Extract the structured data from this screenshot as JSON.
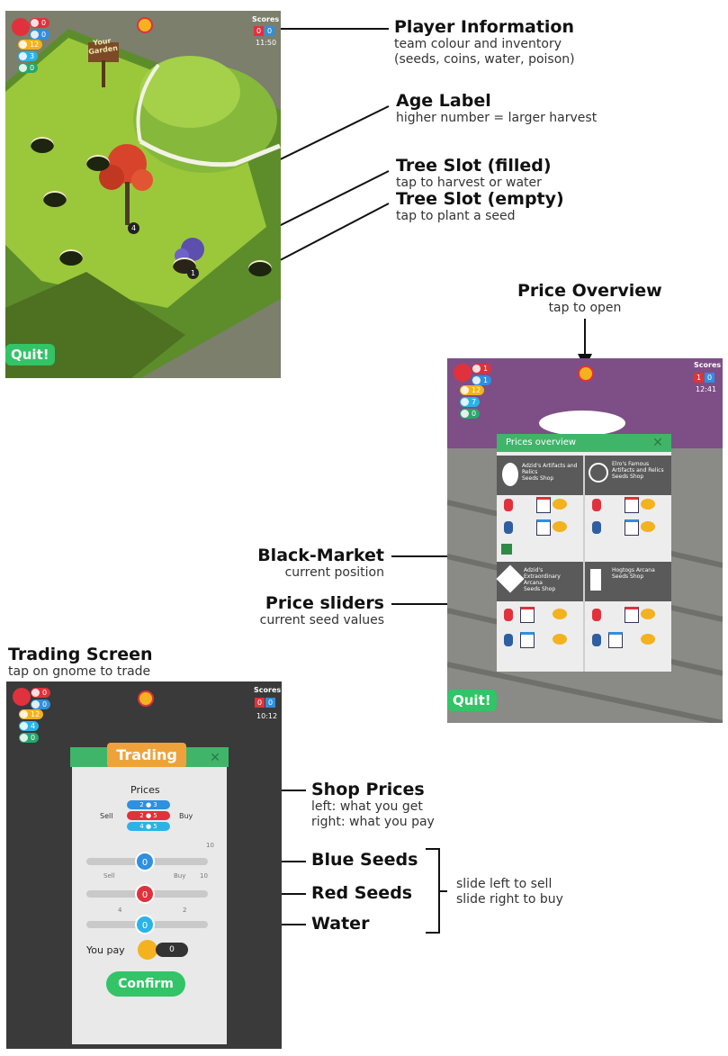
{
  "labels": {
    "player_info": {
      "title": "Player Information",
      "line1": "team colour and inventory",
      "line2": "(seeds, coins, water, poison)"
    },
    "age_label": {
      "title": "Age Label",
      "line1": "higher number = larger harvest"
    },
    "tree_filled": {
      "title": "Tree Slot (filled)",
      "line1": "tap to harvest or water"
    },
    "tree_empty": {
      "title": "Tree Slot (empty)",
      "line1": "tap to plant a seed"
    },
    "price_overview": {
      "title": "Price Overview",
      "line1": "tap to open"
    },
    "black_market": {
      "title": "Black-Market",
      "line1": "current position"
    },
    "price_sliders": {
      "title": "Price sliders",
      "line1": "current seed values"
    },
    "trading_screen": {
      "title": "Trading Screen",
      "line1": "tap on gnome to trade"
    },
    "shop_prices": {
      "title": "Shop Prices",
      "line1": "left: what you get",
      "line2": "right: what you pay"
    },
    "blue_seeds": {
      "title": "Blue Seeds"
    },
    "red_seeds": {
      "title": "Red Seeds"
    },
    "water": {
      "title": "Water"
    },
    "slide_hint": {
      "line1": "slide left to sell",
      "line2": "slide right to buy"
    }
  },
  "garden": {
    "inventory": {
      "red": "0",
      "blue": "0",
      "coins": "12",
      "water": "3",
      "poison": "0"
    },
    "scores_label": "Scores",
    "score_red": "0",
    "score_blue": "0",
    "time": "11:50",
    "sign": "Your Garden",
    "age_a": "4",
    "age_b": "1",
    "quit": "Quit!"
  },
  "overview": {
    "inventory": {
      "red": "1",
      "blue": "1",
      "coins": "12",
      "water": "7",
      "poison": "0"
    },
    "scores_label": "Scores",
    "score_red": "1",
    "score_blue": "0",
    "time": "12:41",
    "panel_title": "Prices overview",
    "shops": [
      {
        "name": "Adzid's Artifacts and Relics",
        "type": "Seeds Shop"
      },
      {
        "name": "Elro's Famous Artifacts and Relics",
        "type": "Seeds Shop"
      },
      {
        "name": "Adzid's Extraordinary Arcana",
        "type": "Seeds Shop"
      },
      {
        "name": "Hogtogs Arcana",
        "type": "Seeds Shop"
      }
    ],
    "quit": "Quit!"
  },
  "trading": {
    "inventory": {
      "red": "0",
      "blue": "0",
      "coins": "12",
      "water": "4",
      "poison": "0"
    },
    "scores_label": "Scores",
    "score_red": "0",
    "score_blue": "0",
    "time": "10:12",
    "banner": "Trading",
    "prices_label": "Prices",
    "sell_label": "Sell",
    "buy_label": "Buy",
    "price_rows": [
      {
        "get": "2",
        "pay": "3"
      },
      {
        "get": "2",
        "pay": "5"
      },
      {
        "get": "4",
        "pay": "5"
      }
    ],
    "slider_blue_value": "0",
    "slider_red_value": "0",
    "slider_water_value": "0",
    "tick_sell": "Sell",
    "tick_buy": "Buy",
    "tick_10a": "10",
    "tick_10b": "10",
    "tick_4": "4",
    "tick_2": "2",
    "you_pay_label": "You pay",
    "you_pay_value": "0",
    "confirm": "Confirm"
  },
  "colors": {
    "red": "#e0323c",
    "blue": "#2f8fe0",
    "coin": "#f3b21e",
    "green": "#32c466",
    "water": "#2bb3e8",
    "poison": "#27a86b"
  }
}
